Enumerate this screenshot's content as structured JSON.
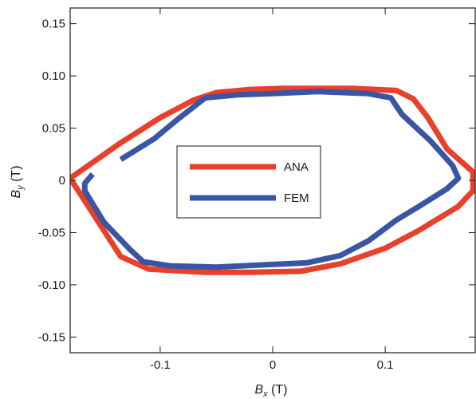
{
  "chart_data": {
    "type": "line",
    "title": "",
    "xlabel": "B_x (T)",
    "ylabel": "B_y (T)",
    "xlabel_parts": {
      "main": "B",
      "sub": "x",
      "unit": " (T)"
    },
    "ylabel_parts": {
      "main": "B",
      "sub": "y",
      "unit": " (T)"
    },
    "xlim": [
      -0.18,
      0.18
    ],
    "ylim": [
      -0.165,
      0.165
    ],
    "xticks": [
      {
        "value": -0.1,
        "label": "-0.1"
      },
      {
        "value": 0,
        "label": "0"
      },
      {
        "value": 0.1,
        "label": "0.1"
      }
    ],
    "yticks": [
      {
        "value": 0.15,
        "label": "0.15"
      },
      {
        "value": 0.1,
        "label": "0.10"
      },
      {
        "value": 0.05,
        "label": "0.05"
      },
      {
        "value": 0,
        "label": "0"
      },
      {
        "value": -0.05,
        "label": "-0.05"
      },
      {
        "value": -0.1,
        "label": "-0.10"
      },
      {
        "value": -0.15,
        "label": "-0.15"
      }
    ],
    "grid": false,
    "legend_position": "center-left",
    "series": [
      {
        "name": "ANA",
        "color": "#e8402a",
        "x": [
          0.033,
          0.07,
          0.11,
          0.125,
          0.138,
          0.155,
          0.178,
          0.178,
          0.165,
          0.13,
          0.1,
          0.06,
          0.025,
          -0.02,
          -0.06,
          -0.11,
          -0.135,
          -0.18,
          -0.135,
          -0.1,
          -0.07,
          -0.05,
          -0.02,
          0.01,
          0.033
        ],
        "y": [
          0.088,
          0.088,
          0.086,
          0.078,
          0.06,
          0.03,
          0.008,
          -0.01,
          -0.025,
          -0.048,
          -0.065,
          -0.08,
          -0.087,
          -0.088,
          -0.088,
          -0.085,
          -0.073,
          0.002,
          0.036,
          0.06,
          0.077,
          0.084,
          0.087,
          0.088,
          0.088
        ]
      },
      {
        "name": "FEM",
        "color": "#3a55a4",
        "x": [
          -0.135,
          -0.105,
          -0.085,
          -0.06,
          -0.03,
          0.0,
          0.04,
          0.085,
          0.105,
          0.115,
          0.14,
          0.16,
          0.165,
          0.155,
          0.13,
          0.11,
          0.085,
          0.06,
          0.03,
          -0.01,
          -0.05,
          -0.09,
          -0.115,
          -0.127,
          -0.15,
          -0.167,
          -0.167,
          -0.16
        ],
        "y": [
          0.02,
          0.04,
          0.058,
          0.079,
          0.082,
          0.083,
          0.085,
          0.083,
          0.079,
          0.063,
          0.038,
          0.014,
          0.002,
          -0.008,
          -0.025,
          -0.038,
          -0.058,
          -0.072,
          -0.079,
          -0.081,
          -0.083,
          -0.082,
          -0.078,
          -0.066,
          -0.04,
          -0.01,
          -0.003,
          0.006
        ]
      }
    ]
  }
}
